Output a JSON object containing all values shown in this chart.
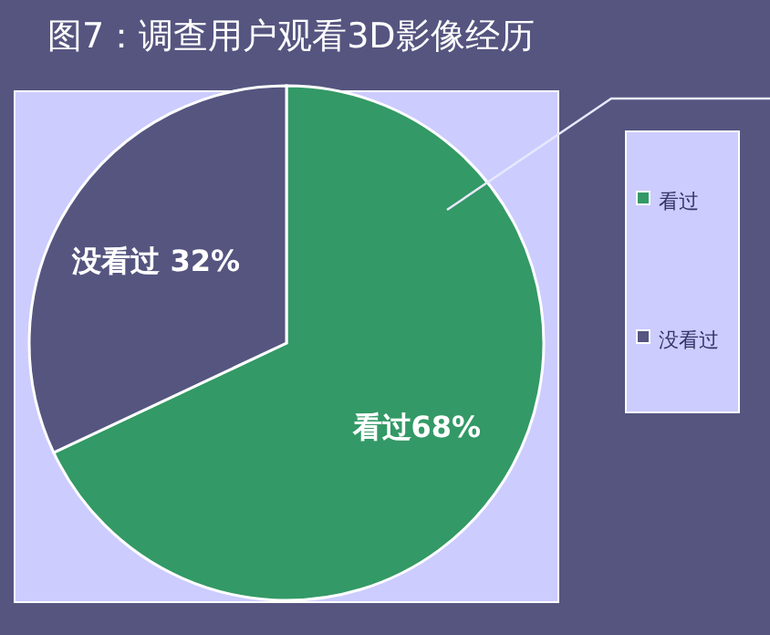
{
  "chart_data": {
    "type": "pie",
    "title": "图7：调查用户观看3D影像经历",
    "categories": [
      "看过",
      "没看过"
    ],
    "values": [
      68,
      32
    ],
    "colors": [
      "#339966",
      "#555580"
    ],
    "value_labels": [
      "看过68%",
      "没看过 32%"
    ],
    "legend": "right"
  }
}
